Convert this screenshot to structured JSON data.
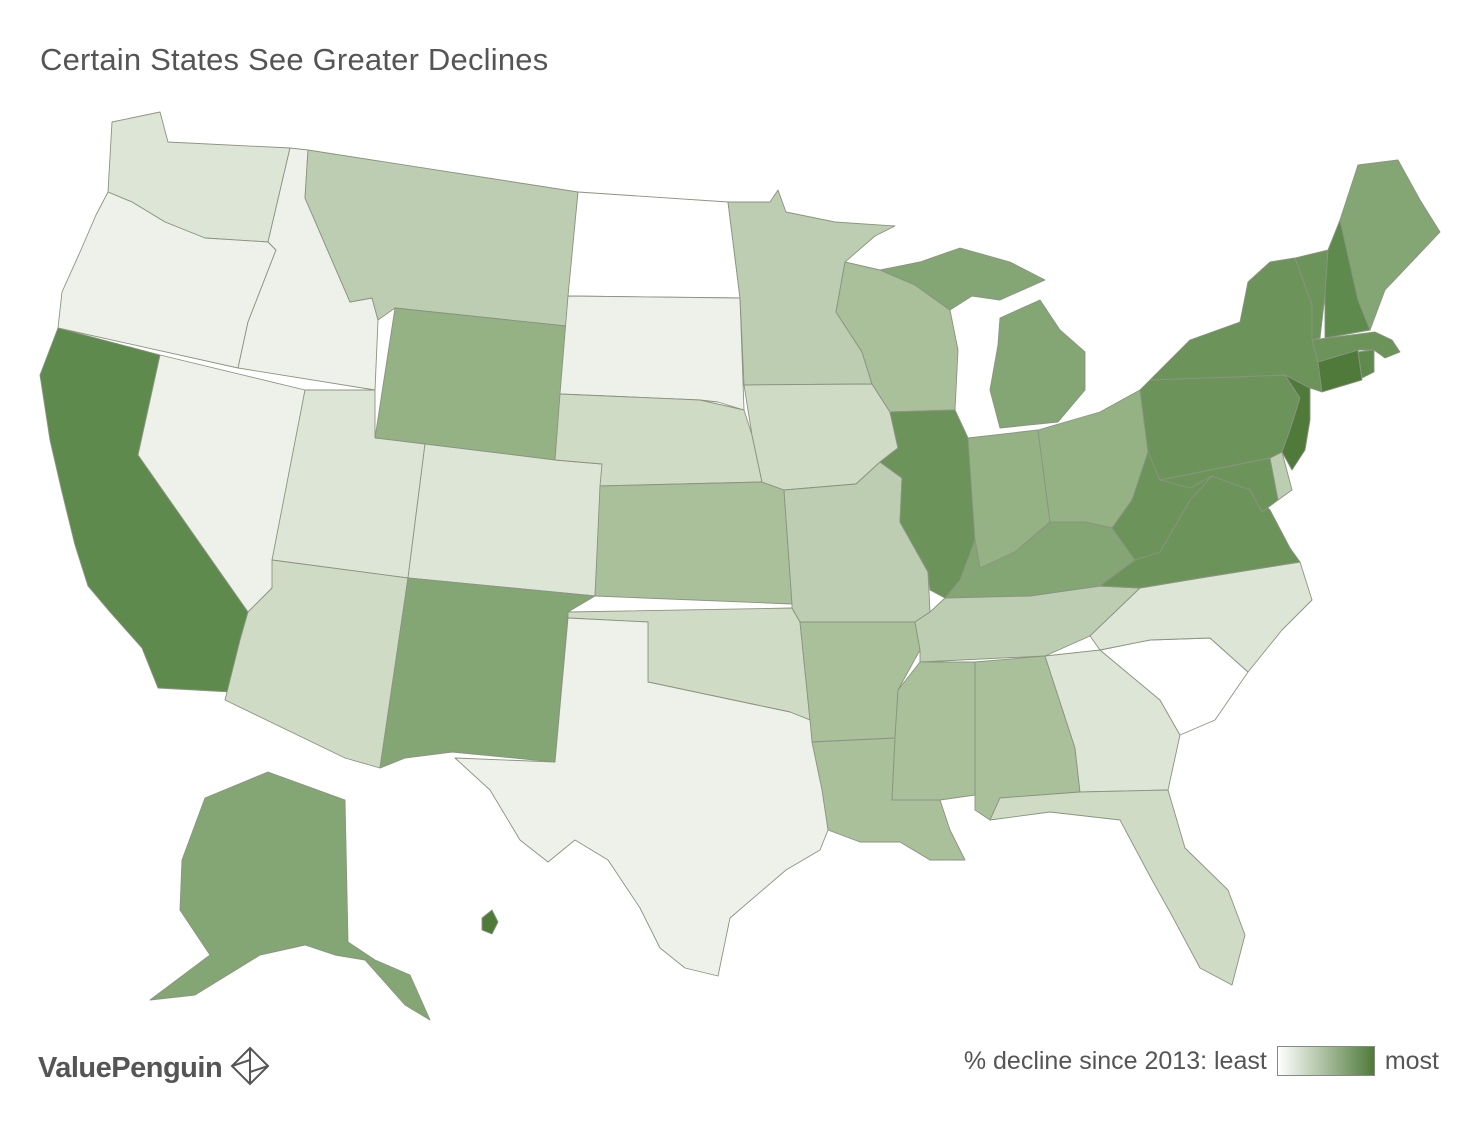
{
  "title": "Certain States See Greater Declines",
  "brand": {
    "name": "ValuePenguin"
  },
  "legend": {
    "label": "% decline since 2013: least",
    "high_label": "most",
    "gradient": [
      "#ffffff",
      "#4f7a3a"
    ]
  },
  "color_scale": {
    "0": "#ffffff",
    "1": "#eef1ea",
    "2": "#dde6d6",
    "3": "#cfdbc4",
    "4": "#bccdb1",
    "5": "#a9c09b",
    "6": "#95b285",
    "7": "#84a674",
    "8": "#6c935a",
    "9": "#5e8a4d",
    "10": "#4f7a3a"
  },
  "states": [
    {
      "name": "Washington",
      "level": 2
    },
    {
      "name": "Oregon",
      "level": 1
    },
    {
      "name": "California",
      "level": 9
    },
    {
      "name": "Idaho",
      "level": 1
    },
    {
      "name": "Nevada",
      "level": 1
    },
    {
      "name": "Montana",
      "level": 4
    },
    {
      "name": "Wyoming",
      "level": 6
    },
    {
      "name": "Utah",
      "level": 2
    },
    {
      "name": "Arizona",
      "level": 3
    },
    {
      "name": "Colorado",
      "level": 2
    },
    {
      "name": "New Mexico",
      "level": 7
    },
    {
      "name": "North Dakota",
      "level": 0
    },
    {
      "name": "South Dakota",
      "level": 1
    },
    {
      "name": "Nebraska",
      "level": 3
    },
    {
      "name": "Kansas",
      "level": 5
    },
    {
      "name": "Oklahoma",
      "level": 3
    },
    {
      "name": "Texas",
      "level": 1
    },
    {
      "name": "Minnesota",
      "level": 4
    },
    {
      "name": "Iowa",
      "level": 3
    },
    {
      "name": "Missouri",
      "level": 4
    },
    {
      "name": "Arkansas",
      "level": 5
    },
    {
      "name": "Louisiana",
      "level": 5
    },
    {
      "name": "Wisconsin",
      "level": 5
    },
    {
      "name": "Illinois",
      "level": 8
    },
    {
      "name": "Michigan",
      "level": 7
    },
    {
      "name": "Indiana",
      "level": 6
    },
    {
      "name": "Ohio",
      "level": 6
    },
    {
      "name": "Kentucky",
      "level": 7
    },
    {
      "name": "Tennessee",
      "level": 4
    },
    {
      "name": "Mississippi",
      "level": 5
    },
    {
      "name": "Alabama",
      "level": 5
    },
    {
      "name": "Georgia",
      "level": 2
    },
    {
      "name": "Florida",
      "level": 3
    },
    {
      "name": "South Carolina",
      "level": 0
    },
    {
      "name": "North Carolina",
      "level": 2
    },
    {
      "name": "Virginia",
      "level": 8
    },
    {
      "name": "West Virginia",
      "level": 8
    },
    {
      "name": "Maryland",
      "level": 8
    },
    {
      "name": "Delaware",
      "level": 4
    },
    {
      "name": "Pennsylvania",
      "level": 8
    },
    {
      "name": "New Jersey",
      "level": 10
    },
    {
      "name": "New York",
      "level": 8
    },
    {
      "name": "Connecticut",
      "level": 10
    },
    {
      "name": "Rhode Island",
      "level": 9
    },
    {
      "name": "Massachusetts",
      "level": 8
    },
    {
      "name": "Vermont",
      "level": 8
    },
    {
      "name": "New Hampshire",
      "level": 9
    },
    {
      "name": "Maine",
      "level": 7
    },
    {
      "name": "Alaska",
      "level": 7
    },
    {
      "name": "Hawaii",
      "level": 10
    }
  ]
}
